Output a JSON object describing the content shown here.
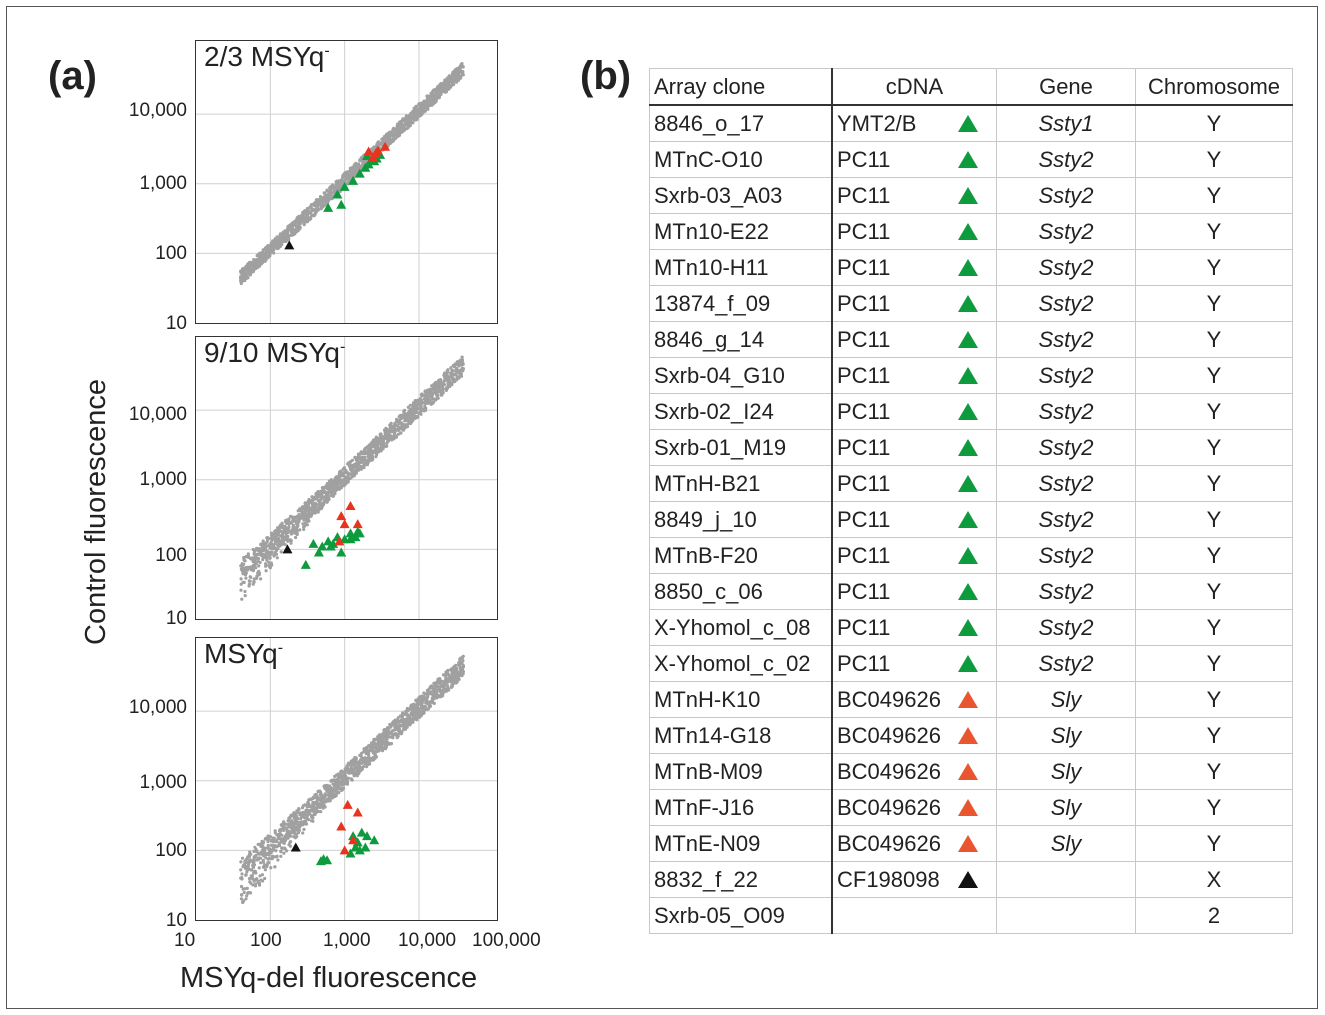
{
  "panel_a_label": "(a)",
  "panel_b_label": "(b)",
  "plots": [
    {
      "title": "2/3 MSYq",
      "sup": "-"
    },
    {
      "title": "9/10 MSYq",
      "sup": "-"
    },
    {
      "title": "MSYq",
      "sup": "-"
    }
  ],
  "y_ticks": [
    "10,000",
    "1,000",
    "100",
    "10"
  ],
  "x_ticks": [
    "10",
    "100",
    "1,000",
    "10,000",
    "100,000"
  ],
  "y_axis_title": "Control fluorescence",
  "x_axis_title": "MSYq-del fluorescence",
  "colors": {
    "green": "#0e9b3e",
    "red": "#e8341c",
    "black": "#111111",
    "grey": "#a0a0a0",
    "triangle_red": "#e8552e"
  },
  "chart_data": [
    {
      "type": "scatter",
      "title": "2/3 MSYq-",
      "scale": "log",
      "xlim": [
        10,
        100000
      ],
      "ylim": [
        10,
        100000
      ],
      "highlighted": {
        "green": [
          [
            800,
            700
          ],
          [
            1000,
            900
          ],
          [
            1300,
            1100
          ],
          [
            1600,
            1400
          ],
          [
            1900,
            1700
          ],
          [
            2100,
            1900
          ],
          [
            2300,
            2200
          ],
          [
            2500,
            2100
          ],
          [
            2700,
            2300
          ],
          [
            2000,
            2500
          ],
          [
            3000,
            2600
          ],
          [
            600,
            450
          ],
          [
            900,
            500
          ]
        ],
        "red": [
          [
            2400,
            2400
          ],
          [
            2600,
            2700
          ],
          [
            3500,
            3400
          ],
          [
            2100,
            2900
          ],
          [
            2800,
            3000
          ]
        ],
        "black": [
          [
            180,
            130
          ]
        ]
      }
    },
    {
      "type": "scatter",
      "title": "9/10 MSYq-",
      "scale": "log",
      "xlim": [
        10,
        100000
      ],
      "ylim": [
        10,
        100000
      ],
      "highlighted": {
        "green": [
          [
            300,
            60
          ],
          [
            380,
            120
          ],
          [
            450,
            90
          ],
          [
            500,
            110
          ],
          [
            600,
            130
          ],
          [
            650,
            110
          ],
          [
            700,
            120
          ],
          [
            800,
            150
          ],
          [
            900,
            90
          ],
          [
            1200,
            170
          ],
          [
            1400,
            150
          ],
          [
            1500,
            180
          ],
          [
            1600,
            170
          ],
          [
            1200,
            140
          ],
          [
            1000,
            140
          ]
        ],
        "red": [
          [
            900,
            300
          ],
          [
            1200,
            420
          ],
          [
            1000,
            230
          ],
          [
            1500,
            230
          ],
          [
            850,
            130
          ]
        ],
        "black": [
          [
            170,
            100
          ]
        ]
      }
    },
    {
      "type": "scatter",
      "title": "MSYq-",
      "scale": "log",
      "xlim": [
        10,
        100000
      ],
      "ylim": [
        10,
        100000
      ],
      "highlighted": {
        "green": [
          [
            480,
            70
          ],
          [
            520,
            75
          ],
          [
            580,
            72
          ],
          [
            1300,
            160
          ],
          [
            1500,
            130
          ],
          [
            1700,
            180
          ],
          [
            2000,
            160
          ],
          [
            2500,
            140
          ],
          [
            1600,
            100
          ],
          [
            1400,
            110
          ],
          [
            1200,
            90
          ],
          [
            1900,
            110
          ]
        ],
        "red": [
          [
            1100,
            450
          ],
          [
            900,
            220
          ],
          [
            1500,
            350
          ],
          [
            1300,
            140
          ],
          [
            1000,
            100
          ]
        ],
        "black": [
          [
            220,
            110
          ]
        ]
      }
    }
  ],
  "table": {
    "headers": [
      "Array clone",
      "cDNA",
      "Gene",
      "Chromosome"
    ],
    "rows": [
      {
        "clone": "8846_o_17",
        "cdna": "YMT2/B",
        "tri": "green",
        "gene": "Ssty1",
        "chrom": "Y"
      },
      {
        "clone": "MTnC-O10",
        "cdna": "PC11",
        "tri": "green",
        "gene": "Ssty2",
        "chrom": "Y"
      },
      {
        "clone": "Sxrb-03_A03",
        "cdna": "PC11",
        "tri": "green",
        "gene": "Ssty2",
        "chrom": "Y"
      },
      {
        "clone": "MTn10-E22",
        "cdna": "PC11",
        "tri": "green",
        "gene": "Ssty2",
        "chrom": "Y"
      },
      {
        "clone": "MTn10-H11",
        "cdna": "PC11",
        "tri": "green",
        "gene": "Ssty2",
        "chrom": "Y"
      },
      {
        "clone": "13874_f_09",
        "cdna": "PC11",
        "tri": "green",
        "gene": "Ssty2",
        "chrom": "Y"
      },
      {
        "clone": "8846_g_14",
        "cdna": "PC11",
        "tri": "green",
        "gene": "Ssty2",
        "chrom": "Y"
      },
      {
        "clone": "Sxrb-04_G10",
        "cdna": "PC11",
        "tri": "green",
        "gene": "Ssty2",
        "chrom": "Y"
      },
      {
        "clone": "Sxrb-02_I24",
        "cdna": "PC11",
        "tri": "green",
        "gene": "Ssty2",
        "chrom": "Y"
      },
      {
        "clone": "Sxrb-01_M19",
        "cdna": "PC11",
        "tri": "green",
        "gene": "Ssty2",
        "chrom": "Y"
      },
      {
        "clone": "MTnH-B21",
        "cdna": "PC11",
        "tri": "green",
        "gene": "Ssty2",
        "chrom": "Y"
      },
      {
        "clone": "8849_j_10",
        "cdna": "PC11",
        "tri": "green",
        "gene": "Ssty2",
        "chrom": "Y"
      },
      {
        "clone": "MTnB-F20",
        "cdna": "PC11",
        "tri": "green",
        "gene": "Ssty2",
        "chrom": "Y"
      },
      {
        "clone": "8850_c_06",
        "cdna": "PC11",
        "tri": "green",
        "gene": "Ssty2",
        "chrom": "Y"
      },
      {
        "clone": "X-Yhomol_c_08",
        "cdna": "PC11",
        "tri": "green",
        "gene": "Ssty2",
        "chrom": "Y"
      },
      {
        "clone": "X-Yhomol_c_02",
        "cdna": "PC11",
        "tri": "green",
        "gene": "Ssty2",
        "chrom": "Y"
      },
      {
        "clone": "MTnH-K10",
        "cdna": "BC049626",
        "tri": "red",
        "gene": "Sly",
        "chrom": "Y"
      },
      {
        "clone": "MTn14-G18",
        "cdna": "BC049626",
        "tri": "red",
        "gene": "Sly",
        "chrom": "Y"
      },
      {
        "clone": "MTnB-M09",
        "cdna": "BC049626",
        "tri": "red",
        "gene": "Sly",
        "chrom": "Y"
      },
      {
        "clone": "MTnF-J16",
        "cdna": "BC049626",
        "tri": "red",
        "gene": "Sly",
        "chrom": "Y"
      },
      {
        "clone": "MTnE-N09",
        "cdna": "BC049626",
        "tri": "red",
        "gene": "Sly",
        "chrom": "Y"
      },
      {
        "clone": "8832_f_22",
        "cdna": "CF198098",
        "tri": "black",
        "gene": "",
        "chrom": "X"
      },
      {
        "clone": "Sxrb-05_O09",
        "cdna": "",
        "tri": "",
        "gene": "",
        "chrom": "2"
      }
    ]
  }
}
